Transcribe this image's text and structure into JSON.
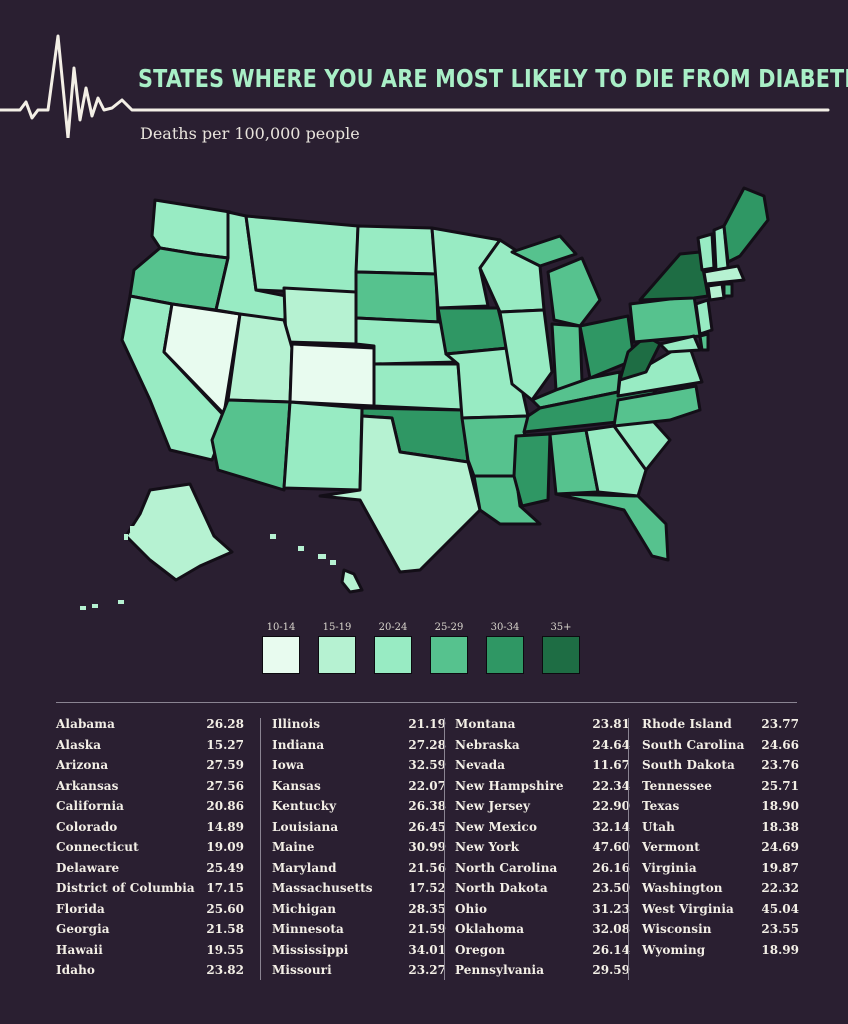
{
  "title": "STATES WHERE YOU ARE MOST LIKELY TO DIE FROM DIABETES",
  "subtitle": "Deaths per 100,000 people",
  "legend": [
    {
      "label": "10-14",
      "color": "#e8fbef"
    },
    {
      "label": "15-19",
      "color": "#b6f2d2"
    },
    {
      "label": "20-24",
      "color": "#98ebc3"
    },
    {
      "label": "25-29",
      "color": "#56c28e"
    },
    {
      "label": "30-34",
      "color": "#2f9764"
    },
    {
      "label": "35+",
      "color": "#1e6d44"
    }
  ],
  "table": {
    "columns": [
      [
        {
          "state": "Alabama",
          "value": "26.28"
        },
        {
          "state": "Alaska",
          "value": "15.27"
        },
        {
          "state": "Arizona",
          "value": "27.59"
        },
        {
          "state": "Arkansas",
          "value": "27.56"
        },
        {
          "state": "California",
          "value": "20.86"
        },
        {
          "state": "Colorado",
          "value": "14.89"
        },
        {
          "state": "Connecticut",
          "value": "19.09"
        },
        {
          "state": "Delaware",
          "value": "25.49"
        },
        {
          "state": "District of Columbia",
          "value": "17.15"
        },
        {
          "state": "Florida",
          "value": "25.60"
        },
        {
          "state": "Georgia",
          "value": "21.58"
        },
        {
          "state": "Hawaii",
          "value": "19.55"
        },
        {
          "state": "Idaho",
          "value": "23.82"
        }
      ],
      [
        {
          "state": "Illinois",
          "value": "21.19"
        },
        {
          "state": "Indiana",
          "value": "27.28"
        },
        {
          "state": "Iowa",
          "value": "32.59"
        },
        {
          "state": "Kansas",
          "value": "22.07"
        },
        {
          "state": "Kentucky",
          "value": "26.38"
        },
        {
          "state": "Louisiana",
          "value": "26.45"
        },
        {
          "state": "Maine",
          "value": "30.99"
        },
        {
          "state": "Maryland",
          "value": "21.56"
        },
        {
          "state": "Massachusetts",
          "value": "17.52"
        },
        {
          "state": "Michigan",
          "value": "28.35"
        },
        {
          "state": "Minnesota",
          "value": "21.59"
        },
        {
          "state": "Mississippi",
          "value": "34.01"
        },
        {
          "state": "Missouri",
          "value": "23.27"
        }
      ],
      [
        {
          "state": "Montana",
          "value": "23.81"
        },
        {
          "state": "Nebraska",
          "value": "24.64"
        },
        {
          "state": "Nevada",
          "value": "11.67"
        },
        {
          "state": "New Hampshire",
          "value": "22.34"
        },
        {
          "state": "New Jersey",
          "value": "22.90"
        },
        {
          "state": "New Mexico",
          "value": "32.14"
        },
        {
          "state": "New York",
          "value": "47.60"
        },
        {
          "state": "North Carolina",
          "value": "26.16"
        },
        {
          "state": "North Dakota",
          "value": "23.50"
        },
        {
          "state": "Ohio",
          "value": "31.23"
        },
        {
          "state": "Oklahoma",
          "value": "32.08"
        },
        {
          "state": "Oregon",
          "value": "26.14"
        },
        {
          "state": "Pennsylvania",
          "value": "29.59"
        }
      ],
      [
        {
          "state": "Rhode Island",
          "value": "23.77"
        },
        {
          "state": "South Carolina",
          "value": "24.66"
        },
        {
          "state": "South Dakota",
          "value": "23.76"
        },
        {
          "state": "Tennessee",
          "value": "25.71"
        },
        {
          "state": "Texas",
          "value": "18.90"
        },
        {
          "state": "Utah",
          "value": "18.38"
        },
        {
          "state": "Vermont",
          "value": "24.69"
        },
        {
          "state": "Virginia",
          "value": "19.87"
        },
        {
          "state": "Washington",
          "value": "22.32"
        },
        {
          "state": "West Virginia",
          "value": "45.04"
        },
        {
          "state": "Wisconsin",
          "value": "23.55"
        },
        {
          "state": "Wyoming",
          "value": "18.99"
        }
      ]
    ]
  }
}
